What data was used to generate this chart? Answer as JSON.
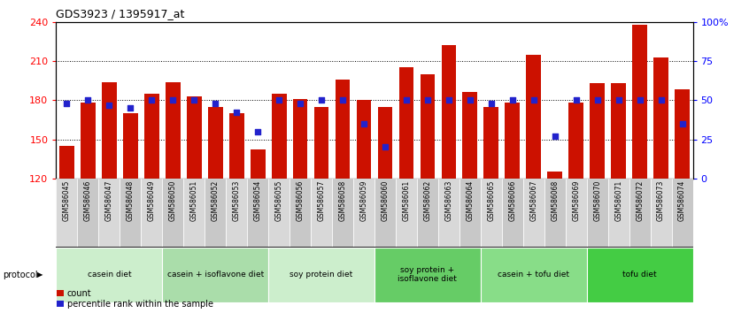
{
  "title": "GDS3923 / 1395917_at",
  "samples": [
    "GSM586045",
    "GSM586046",
    "GSM586047",
    "GSM586048",
    "GSM586049",
    "GSM586050",
    "GSM586051",
    "GSM586052",
    "GSM586053",
    "GSM586054",
    "GSM586055",
    "GSM586056",
    "GSM586057",
    "GSM586058",
    "GSM586059",
    "GSM586060",
    "GSM586061",
    "GSM586062",
    "GSM586063",
    "GSM586064",
    "GSM586065",
    "GSM586066",
    "GSM586067",
    "GSM586068",
    "GSM586069",
    "GSM586070",
    "GSM586071",
    "GSM586072",
    "GSM586073",
    "GSM586074"
  ],
  "count_values": [
    145,
    178,
    194,
    170,
    185,
    194,
    183,
    175,
    170,
    142,
    185,
    181,
    175,
    196,
    180,
    175,
    205,
    200,
    222,
    186,
    175,
    178,
    215,
    125,
    178,
    193,
    193,
    238,
    213,
    188
  ],
  "percentile_values": [
    48,
    50,
    47,
    45,
    50,
    50,
    50,
    48,
    42,
    30,
    50,
    48,
    50,
    50,
    35,
    20,
    50,
    50,
    50,
    50,
    48,
    50,
    50,
    27,
    50,
    50,
    50,
    50,
    50,
    35
  ],
  "bar_color": "#cc1100",
  "dot_color": "#2222cc",
  "ylim_left": [
    120,
    240
  ],
  "ylim_right": [
    0,
    100
  ],
  "yticks_left": [
    120,
    150,
    180,
    210,
    240
  ],
  "yticks_right": [
    0,
    25,
    50,
    75,
    100
  ],
  "grid_values": [
    150,
    180,
    210
  ],
  "groups": [
    {
      "label": "casein diet",
      "start": 0,
      "end": 4,
      "color": "#cceecc"
    },
    {
      "label": "casein + isoflavone diet",
      "start": 5,
      "end": 9,
      "color": "#aaddaa"
    },
    {
      "label": "soy protein diet",
      "start": 10,
      "end": 14,
      "color": "#cceecc"
    },
    {
      "label": "soy protein +\nisoflavone diet",
      "start": 15,
      "end": 19,
      "color": "#66cc66"
    },
    {
      "label": "casein + tofu diet",
      "start": 20,
      "end": 24,
      "color": "#88dd88"
    },
    {
      "label": "tofu diet",
      "start": 25,
      "end": 29,
      "color": "#44cc44"
    }
  ],
  "protocol_label": "protocol",
  "legend_count_label": "count",
  "legend_pct_label": "percentile rank within the sample",
  "bar_width": 0.7,
  "bg_color": "#ffffff",
  "tick_bg_light": "#d8d8d8",
  "tick_bg_dark": "#c8c8c8"
}
